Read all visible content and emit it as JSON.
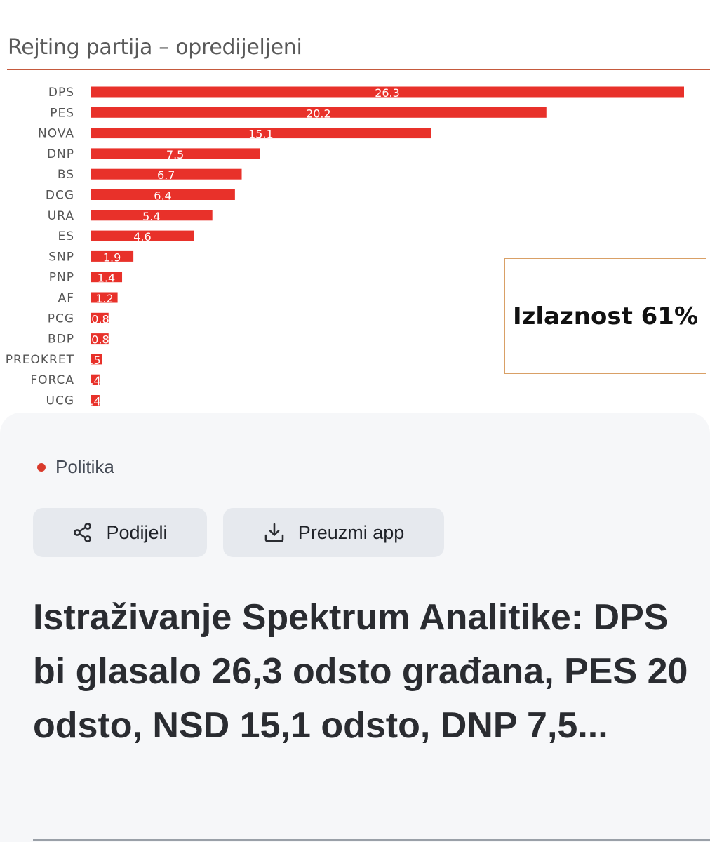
{
  "chart_data": {
    "type": "bar",
    "orientation": "horizontal",
    "title": "Rejting partija – opredijeljeni",
    "categories": [
      "DPS",
      "PES",
      "NOVA",
      "DNP",
      "BS",
      "DCG",
      "URA",
      "ES",
      "SNP",
      "PNP",
      "AF",
      "PCG",
      "BDP",
      "PREOKRET",
      "FORCA",
      "UCG"
    ],
    "values": [
      26.3,
      20.2,
      15.1,
      7.5,
      6.7,
      6.4,
      5.4,
      4.6,
      1.9,
      1.4,
      1.2,
      0.8,
      0.8,
      0.5,
      0.4,
      0.4
    ],
    "data_labels": [
      "26.3",
      "20.2",
      "15.1",
      "7.5",
      "6.7",
      "6.4",
      "5.4",
      "4.6",
      "1.9",
      "1.4",
      "1.2",
      "0.8",
      "0.8",
      ".5",
      ".4",
      ".4"
    ],
    "xlim": [
      0,
      26.3
    ],
    "grid": false,
    "bar_color": "#e8312a",
    "annotation": "Izlaznost 61%"
  },
  "article": {
    "category": "Politika",
    "category_color": "#d93a2b",
    "share_label": "Podijeli",
    "share_icon": "share-icon",
    "download_label": "Preuzmi app",
    "download_icon": "download-icon",
    "headline": "Istraživanje Spektrum Analitike: DPS bi glasalo 26,3 odsto građana, PES 20 odsto, NSD 15,1 odsto, DNP 7,5..."
  }
}
